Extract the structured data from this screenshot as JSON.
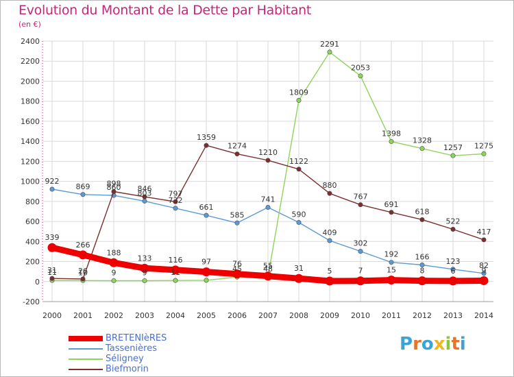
{
  "header": {
    "title": "Evolution du Montant de la Dette par Habitant",
    "unit": "(en €)"
  },
  "logo": {
    "letters": [
      "P",
      "r",
      "o",
      "x",
      "i",
      "t",
      "i"
    ],
    "colors": [
      "#3aa4d8",
      "#e8742a",
      "#3aa4d8",
      "#f2b522",
      "#8cc63f",
      "#e8742a",
      "#3aa4d8"
    ]
  },
  "colors": {
    "title": "#c8257a",
    "grid": "#d9d9d9",
    "axis_text": "#333333",
    "legend_text": "#4a6fd1"
  },
  "chart_data": {
    "type": "line",
    "title": "Evolution du Montant de la Dette par Habitant",
    "ylabel": "(en €)",
    "x": [
      "2000",
      "2001",
      "2002",
      "2003",
      "2004",
      "2005",
      "2006",
      "2007",
      "2008",
      "2009",
      "2010",
      "2011",
      "2012",
      "2013",
      "2014"
    ],
    "ylim": [
      -200,
      2400
    ],
    "yticks": [
      -200,
      0,
      200,
      400,
      600,
      800,
      1000,
      1200,
      1400,
      1600,
      1800,
      2000,
      2200,
      2400
    ],
    "grid": true,
    "legend": "bottom-left",
    "series": [
      {
        "name": "BRETENIèRES",
        "color": "#ee0000",
        "values": [
          339,
          266,
          188,
          133,
          116,
          97,
          76,
          55,
          31,
          5,
          7,
          15,
          8,
          6,
          9
        ],
        "labels": [
          "339",
          "266",
          "188",
          "133",
          "116",
          "97",
          "76",
          "55",
          "31",
          "5",
          "7",
          "15",
          "8",
          "6",
          "9"
        ]
      },
      {
        "name": "Tassenières",
        "color": "#5b9bd5",
        "values": [
          922,
          869,
          860,
          803,
          732,
          661,
          585,
          741,
          590,
          409,
          302,
          192,
          166,
          123,
          82
        ],
        "labels": [
          "922",
          "869",
          "860",
          "803",
          "732",
          "661",
          "585",
          "741",
          "590",
          "409",
          "302",
          "192",
          "166",
          "123",
          "82"
        ]
      },
      {
        "name": "Séligney",
        "color": "#8fd45a",
        "values": [
          11,
          10,
          9,
          9,
          11,
          13,
          45,
          48,
          1809,
          2291,
          2053,
          1398,
          1328,
          1257,
          1275
        ],
        "labels": [
          "11",
          "10",
          "9",
          "9",
          "11",
          "",
          "45",
          "48",
          "1809",
          "2291",
          "2053",
          "1398",
          "1328",
          "1257",
          "1275"
        ]
      },
      {
        "name": "Biefmorin",
        "color": "#7a2f2f",
        "values": [
          31,
          26,
          898,
          846,
          797,
          1359,
          1274,
          1210,
          1122,
          880,
          767,
          691,
          618,
          522,
          417
        ],
        "labels": [
          "31",
          "26",
          "898",
          "846",
          "797",
          "1359",
          "1274",
          "1210",
          "1122",
          "880",
          "767",
          "691",
          "618",
          "522",
          "417"
        ]
      }
    ]
  }
}
